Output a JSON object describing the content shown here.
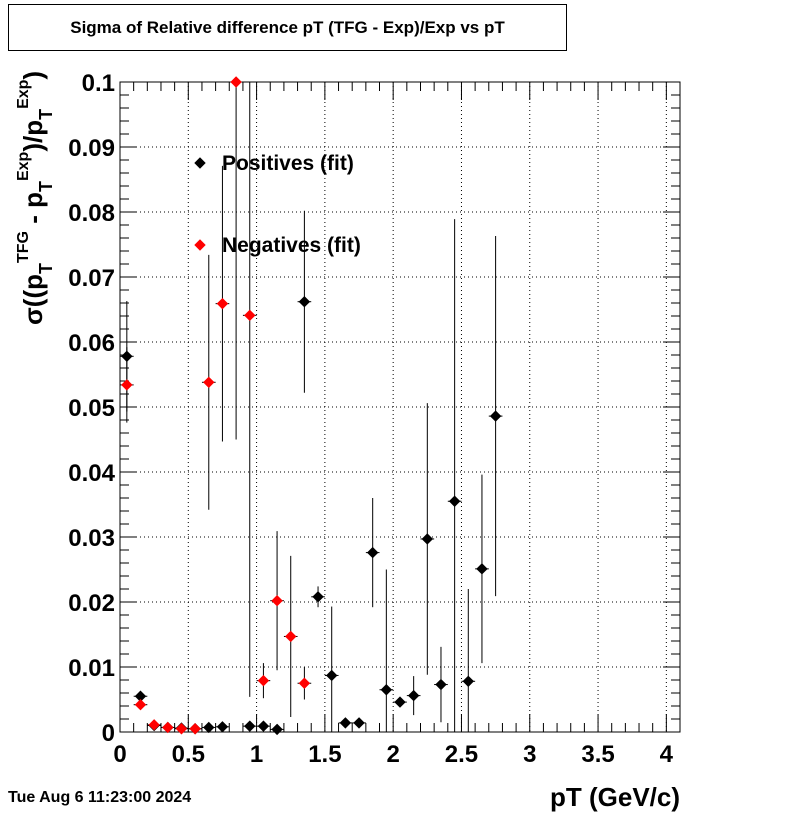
{
  "title": "Sigma of Relative difference pT (TFG - Exp)/Exp vs pT",
  "datestamp": "Tue Aug  6 11:23:00 2024",
  "chart_data": {
    "type": "scatter",
    "title": "Sigma of Relative difference pT (TFG - Exp)/Exp vs pT",
    "xlabel": "pT (GeV/c)",
    "ylabel": "σ((p_T^TFG - p_T^Exp)/p_T^Exp)",
    "xlim": [
      0,
      4.1
    ],
    "ylim": [
      0,
      0.1
    ],
    "x_ticks": [
      "0",
      "0.5",
      "1",
      "1.5",
      "2",
      "2.5",
      "3",
      "3.5",
      "4"
    ],
    "y_ticks": [
      "0",
      "0.01",
      "0.02",
      "0.03",
      "0.04",
      "0.05",
      "0.06",
      "0.07",
      "0.08",
      "0.09",
      "0.1"
    ],
    "grid": true,
    "legend_position": "top-left",
    "series": [
      {
        "name": "Positives (fit)",
        "color": "#000000",
        "points": [
          {
            "x": 0.05,
            "y": 0.0578,
            "err": 0.0085
          },
          {
            "x": 0.15,
            "y": 0.0055,
            "err": 0.0008
          },
          {
            "x": 0.25,
            "y": 0.001,
            "err": 0.0003
          },
          {
            "x": 0.35,
            "y": 0.0007,
            "err": 0.0002
          },
          {
            "x": 0.45,
            "y": 0.0006,
            "err": 0.0002
          },
          {
            "x": 0.55,
            "y": 0.0005,
            "err": 0.0002
          },
          {
            "x": 0.65,
            "y": 0.0007,
            "err": 0.0003
          },
          {
            "x": 0.75,
            "y": 0.0008,
            "err": 0.0003
          },
          {
            "x": 0.95,
            "y": 0.0009,
            "err": 0.0004
          },
          {
            "x": 1.05,
            "y": 0.0009,
            "err": 0.0004
          },
          {
            "x": 1.15,
            "y": 0.0004,
            "err": 0.0004
          },
          {
            "x": 1.35,
            "y": 0.0662,
            "err": 0.014
          },
          {
            "x": 1.45,
            "y": 0.0208,
            "err": 0.0016
          },
          {
            "x": 1.55,
            "y": 0.0087,
            "err": 0.0106
          },
          {
            "x": 1.65,
            "y": 0.0014,
            "err": 0.0003
          },
          {
            "x": 1.75,
            "y": 0.0014,
            "err": 0.0003
          },
          {
            "x": 1.85,
            "y": 0.0276,
            "err": 0.0084
          },
          {
            "x": 1.95,
            "y": 0.0065,
            "err": 0.0185
          },
          {
            "x": 2.05,
            "y": 0.0046,
            "err": 0.0004
          },
          {
            "x": 2.15,
            "y": 0.0056,
            "err": 0.003
          },
          {
            "x": 2.25,
            "y": 0.0297,
            "err": 0.0209
          },
          {
            "x": 2.35,
            "y": 0.0073,
            "err": 0.0058
          },
          {
            "x": 2.45,
            "y": 0.0355,
            "err": 0.0434
          },
          {
            "x": 2.55,
            "y": 0.0078,
            "err": 0.0142
          },
          {
            "x": 2.65,
            "y": 0.0251,
            "err": 0.0145
          },
          {
            "x": 2.75,
            "y": 0.0486,
            "err": 0.0277
          }
        ]
      },
      {
        "name": "Negatives (fit)",
        "color": "#ff0000",
        "points": [
          {
            "x": 0.05,
            "y": 0.0534,
            "err": 0.0058
          },
          {
            "x": 0.15,
            "y": 0.0042,
            "err": 0.0005
          },
          {
            "x": 0.25,
            "y": 0.0011,
            "err": 0.0003
          },
          {
            "x": 0.35,
            "y": 0.0007,
            "err": 0.0002
          },
          {
            "x": 0.45,
            "y": 0.0005,
            "err": 0.0002
          },
          {
            "x": 0.55,
            "y": 0.0005,
            "err": 0.0002
          },
          {
            "x": 0.65,
            "y": 0.0538,
            "err": 0.0196
          },
          {
            "x": 0.75,
            "y": 0.0659,
            "err": 0.0212
          },
          {
            "x": 0.85,
            "y": 0.1,
            "err": 0.055
          },
          {
            "x": 0.95,
            "y": 0.0641,
            "err": 0.0587
          },
          {
            "x": 1.05,
            "y": 0.0079,
            "err": 0.0027
          },
          {
            "x": 1.15,
            "y": 0.0202,
            "err": 0.0107
          },
          {
            "x": 1.25,
            "y": 0.0147,
            "err": 0.0124
          },
          {
            "x": 1.35,
            "y": 0.0075,
            "err": 0.0025
          }
        ]
      }
    ]
  }
}
